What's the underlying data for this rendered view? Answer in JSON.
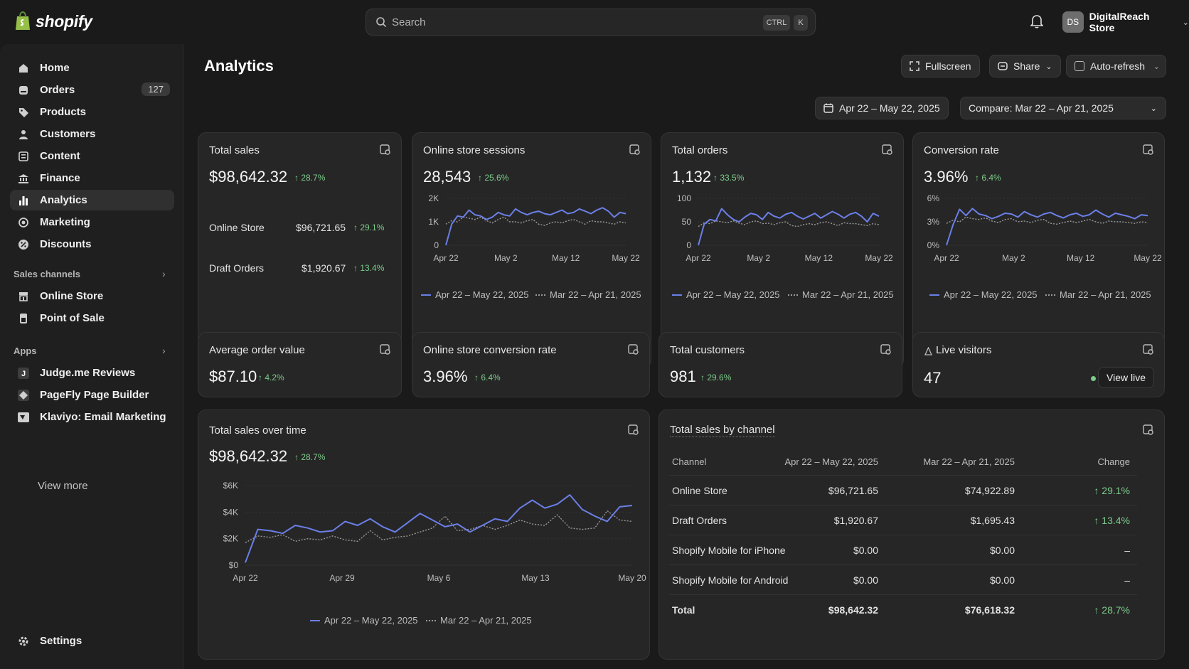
{
  "brand": {
    "name": "shopify"
  },
  "search": {
    "placeholder": "Search",
    "kbd1": "CTRL",
    "kbd2": "K"
  },
  "store": {
    "initials": "DS",
    "name": "DigitalReach Store"
  },
  "sidebar": {
    "items": [
      {
        "label": "Home"
      },
      {
        "label": "Orders",
        "badge": "127"
      },
      {
        "label": "Products"
      },
      {
        "label": "Customers"
      },
      {
        "label": "Content"
      },
      {
        "label": "Finance"
      },
      {
        "label": "Analytics"
      },
      {
        "label": "Marketing"
      },
      {
        "label": "Discounts"
      }
    ],
    "sales_channels_title": "Sales channels",
    "sales_channels": [
      {
        "label": "Online Store"
      },
      {
        "label": "Point of Sale"
      }
    ],
    "apps_title": "Apps",
    "apps": [
      {
        "label": "Judge.me Reviews"
      },
      {
        "label": "PageFly Page Builder"
      },
      {
        "label": "Klaviyo: Email Marketing"
      }
    ],
    "view_more": "View more",
    "settings": "Settings"
  },
  "header": {
    "title": "Analytics",
    "fullscreen": "Fullscreen",
    "share": "Share",
    "auto_refresh": "Auto-refresh",
    "date_range": "Apr 22 – May 22, 2025",
    "compare": "Compare: Mar 22 – Apr 21, 2025"
  },
  "legend": {
    "current": "Apr 22 – May 22, 2025",
    "previous": "Mar 22 – Apr 21, 2025"
  },
  "cards": {
    "total_sales": {
      "title": "Total sales",
      "value": "$98,642.32",
      "delta": "↑ 28.7%",
      "rows": [
        {
          "label": "Online Store",
          "value": "$96,721.65",
          "delta": "↑ 29.1%"
        },
        {
          "label": "Draft Orders",
          "value": "$1,920.67",
          "delta": "↑ 13.4%"
        }
      ]
    },
    "sessions": {
      "title": "Online store sessions",
      "value": "28,543",
      "delta": "↑ 25.6%",
      "yticks": [
        "2K",
        "1K",
        "0"
      ],
      "xticks": [
        "Apr 22",
        "May 2",
        "May 12",
        "May 22"
      ]
    },
    "orders": {
      "title": "Total orders",
      "value": "1,132",
      "delta": "↑ 33.5%",
      "yticks": [
        "100",
        "50",
        "0"
      ],
      "xticks": [
        "Apr 22",
        "May 2",
        "May 12",
        "May 22"
      ]
    },
    "conversion": {
      "title": "Conversion rate",
      "value": "3.96%",
      "delta": "↑ 6.4%",
      "yticks": [
        "6%",
        "3%",
        "0%"
      ],
      "xticks": [
        "Apr 22",
        "May 2",
        "May 12",
        "May 22"
      ]
    },
    "aov": {
      "title": "Average order value",
      "value": "$87.10",
      "delta": "↑ 4.2%"
    },
    "store_conversion": {
      "title": "Online store conversion rate",
      "value": "3.96%",
      "delta": "↑ 6.4%"
    },
    "customers": {
      "title": "Total customers",
      "value": "981",
      "delta": "↑ 29.6%"
    },
    "live": {
      "title": "Live visitors",
      "value": "47",
      "button": "View live"
    },
    "sales_over_time": {
      "title": "Total sales over time",
      "value": "$98,642.32",
      "delta": "↑ 28.7%",
      "yticks": [
        "$6K",
        "$4K",
        "$2K",
        "$0"
      ],
      "xticks": [
        "Apr 22",
        "Apr 29",
        "May 6",
        "May 13",
        "May 20"
      ]
    },
    "by_channel": {
      "title": "Total sales by channel",
      "headers": [
        "Channel",
        "Apr 22 – May 22, 2025",
        "Mar 22 – Apr 21, 2025",
        "Change"
      ],
      "rows": [
        [
          "Online Store",
          "$96,721.65",
          "$74,922.89",
          "↑ 29.1%"
        ],
        [
          "Draft Orders",
          "$1,920.67",
          "$1,695.43",
          "↑ 13.4%"
        ],
        [
          "Shopify Mobile for iPhone",
          "$0.00",
          "$0.00",
          "–"
        ],
        [
          "Shopify Mobile for Android",
          "$0.00",
          "$0.00",
          "–"
        ],
        [
          "Total",
          "$98,642.32",
          "$76,618.32",
          "↑ 28.7%"
        ]
      ]
    }
  },
  "colors": {
    "accent": "#6b7fe8",
    "positive": "#7ccb8a",
    "comparison": "#9a9a9a"
  },
  "chart_data": [
    {
      "type": "line",
      "name": "sessions",
      "ylim": [
        0,
        2000
      ],
      "series": [
        {
          "name": "Apr 22 – May 22, 2025",
          "values": [
            0,
            900,
            1250,
            1200,
            1500,
            1300,
            1250,
            1100,
            1200,
            1400,
            1300,
            1250,
            1550,
            1400,
            1300,
            1400,
            1450,
            1350,
            1300,
            1400,
            1500,
            1350,
            1400,
            1550,
            1450,
            1350,
            1500,
            1600,
            1450,
            1200,
            1400,
            1350
          ]
        },
        {
          "name": "Mar 22 – Apr 21, 2025",
          "values": [
            900,
            1050,
            1000,
            1200,
            1150,
            1100,
            1200,
            1050,
            950,
            1100,
            1200,
            1000,
            1000,
            950,
            1050,
            1100,
            900,
            850,
            950,
            1000,
            950,
            1050,
            1100,
            1000,
            900,
            1050,
            1000,
            1000,
            950,
            900,
            1000,
            950
          ]
        }
      ]
    },
    {
      "type": "line",
      "name": "orders",
      "ylim": [
        0,
        100
      ],
      "series": [
        {
          "name": "Apr 22 – May 22, 2025",
          "values": [
            0,
            45,
            55,
            52,
            78,
            65,
            55,
            50,
            60,
            68,
            65,
            55,
            70,
            62,
            58,
            66,
            70,
            62,
            56,
            62,
            68,
            58,
            65,
            72,
            66,
            58,
            66,
            70,
            62,
            50,
            68,
            62
          ]
        },
        {
          "name": "Mar 22 – Apr 21, 2025",
          "values": [
            40,
            48,
            46,
            52,
            50,
            48,
            52,
            47,
            44,
            50,
            52,
            46,
            47,
            44,
            48,
            50,
            42,
            40,
            44,
            46,
            44,
            48,
            50,
            46,
            42,
            48,
            46,
            46,
            44,
            42,
            46,
            44
          ]
        }
      ]
    },
    {
      "type": "line",
      "name": "conversion",
      "ylim": [
        0,
        6
      ],
      "series": [
        {
          "name": "Apr 22 – May 22, 2025",
          "values": [
            0,
            2.6,
            4.6,
            3.8,
            4.7,
            4.0,
            3.8,
            3.4,
            3.7,
            4.1,
            4.0,
            3.6,
            4.3,
            3.9,
            3.6,
            4.0,
            4.2,
            3.8,
            3.5,
            3.9,
            4.1,
            3.7,
            3.9,
            4.5,
            4.0,
            3.6,
            4.1,
            3.9,
            3.7,
            3.4,
            3.9,
            3.8
          ]
        },
        {
          "name": "Mar 22 – Apr 21, 2025",
          "values": [
            2.8,
            3.2,
            3.0,
            3.6,
            3.4,
            3.3,
            3.5,
            3.1,
            2.9,
            3.3,
            3.4,
            3.0,
            3.1,
            2.9,
            3.2,
            3.3,
            2.8,
            2.7,
            2.9,
            3.1,
            2.9,
            3.1,
            3.3,
            3.0,
            2.8,
            3.1,
            3.0,
            3.0,
            2.9,
            2.8,
            3.0,
            2.9
          ]
        }
      ]
    },
    {
      "type": "line",
      "name": "sales_over_time",
      "ylim": [
        0,
        6000
      ],
      "series": [
        {
          "name": "Apr 22 – May 22, 2025",
          "values": [
            200,
            2700,
            2600,
            2400,
            3000,
            2800,
            2500,
            2600,
            3300,
            3000,
            3500,
            2900,
            2500,
            3200,
            3900,
            3400,
            2900,
            3100,
            2500,
            3000,
            3500,
            3300,
            4300,
            4900,
            4300,
            4600,
            5300,
            4200,
            3700,
            3300,
            4400,
            4500
          ]
        },
        {
          "name": "Mar 22 – Apr 21, 2025",
          "values": [
            1700,
            2200,
            2100,
            2300,
            1800,
            2000,
            1900,
            2200,
            1900,
            1800,
            2600,
            1900,
            2100,
            2200,
            2500,
            2800,
            3700,
            2600,
            2700,
            3000,
            2700,
            3000,
            3400,
            3100,
            3000,
            3800,
            2800,
            2700,
            2800,
            4100,
            3400,
            3300
          ]
        }
      ]
    }
  ]
}
